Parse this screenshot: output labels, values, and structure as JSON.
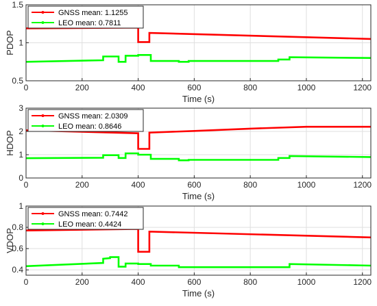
{
  "chart_data": [
    {
      "type": "line",
      "ylabel": "PDOP",
      "xlabel": "Time (s)",
      "xlim": [
        0,
        1230
      ],
      "ylim": [
        0.5,
        1.5
      ],
      "xticks": [
        0,
        200,
        400,
        600,
        800,
        1000,
        1200
      ],
      "yticks": [
        0.5,
        1,
        1.5
      ],
      "ytick_labels": [
        "0.5",
        "1",
        "1.5"
      ],
      "grid": true,
      "legend": "top-left",
      "series": [
        {
          "name": "GNSS mean: 1.1255",
          "color": "#ff0000",
          "x": [
            0,
            400,
            400,
            440,
            440,
            1230
          ],
          "y": [
            1.19,
            1.2,
            1.01,
            1.01,
            1.13,
            1.05
          ]
        },
        {
          "name": "LEO mean: 0.7811",
          "color": "#00ff00",
          "x": [
            0,
            275,
            275,
            330,
            330,
            355,
            355,
            400,
            400,
            445,
            445,
            545,
            545,
            580,
            580,
            900,
            900,
            940,
            940,
            1230
          ],
          "y": [
            0.75,
            0.77,
            0.82,
            0.82,
            0.75,
            0.75,
            0.83,
            0.83,
            0.84,
            0.84,
            0.76,
            0.76,
            0.75,
            0.75,
            0.76,
            0.76,
            0.78,
            0.78,
            0.81,
            0.8
          ]
        }
      ]
    },
    {
      "type": "line",
      "ylabel": "HDOP",
      "xlabel": "Time (s)",
      "xlim": [
        0,
        1230
      ],
      "ylim": [
        0,
        3
      ],
      "xticks": [
        0,
        200,
        400,
        600,
        800,
        1000,
        1200
      ],
      "yticks": [
        0,
        1,
        2,
        3
      ],
      "ytick_labels": [
        "0",
        "1",
        "2",
        "3"
      ],
      "grid": true,
      "legend": "top-left",
      "series": [
        {
          "name": "GNSS mean: 2.0309",
          "color": "#ff0000",
          "x": [
            0,
            400,
            400,
            440,
            440,
            600,
            800,
            1000,
            1230
          ],
          "y": [
            2.05,
            1.92,
            1.25,
            1.25,
            1.95,
            2.02,
            2.12,
            2.2,
            2.2
          ]
        },
        {
          "name": "LEO mean: 0.8646",
          "color": "#00ff00",
          "x": [
            0,
            275,
            275,
            330,
            330,
            355,
            355,
            400,
            400,
            445,
            445,
            545,
            545,
            580,
            580,
            900,
            900,
            940,
            940,
            1230
          ],
          "y": [
            0.85,
            0.87,
            0.98,
            0.98,
            0.86,
            0.86,
            1.06,
            1.06,
            1.0,
            1.0,
            0.82,
            0.82,
            0.76,
            0.76,
            0.78,
            0.78,
            0.86,
            0.86,
            0.94,
            0.9
          ]
        }
      ]
    },
    {
      "type": "line",
      "ylabel": "VDOP",
      "xlabel": "Time (s)",
      "xlim": [
        0,
        1230
      ],
      "ylim": [
        0.35,
        1.0
      ],
      "xticks": [
        0,
        200,
        400,
        600,
        800,
        1000,
        1200
      ],
      "yticks": [
        0.4,
        0.6,
        0.8,
        1
      ],
      "ytick_labels": [
        "0.4",
        "0.6",
        "0.8",
        "1"
      ],
      "grid": true,
      "legend": "top-left",
      "series": [
        {
          "name": "GNSS mean: 0.7442",
          "color": "#ff0000",
          "x": [
            0,
            400,
            400,
            440,
            440,
            1230
          ],
          "y": [
            0.77,
            0.785,
            0.57,
            0.57,
            0.76,
            0.705
          ]
        },
        {
          "name": "LEO mean: 0.4424",
          "color": "#00ff00",
          "x": [
            0,
            275,
            275,
            300,
            300,
            330,
            330,
            355,
            355,
            400,
            400,
            445,
            445,
            545,
            545,
            940,
            940,
            1230
          ],
          "y": [
            0.435,
            0.465,
            0.505,
            0.51,
            0.52,
            0.52,
            0.43,
            0.43,
            0.46,
            0.46,
            0.455,
            0.455,
            0.44,
            0.44,
            0.425,
            0.425,
            0.455,
            0.44
          ]
        }
      ]
    }
  ]
}
